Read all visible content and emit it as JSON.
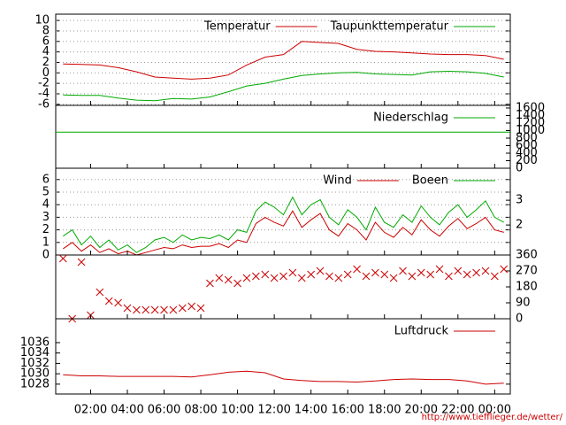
{
  "chart_data": [
    {
      "type": "line",
      "xlim": [
        0.1,
        24.85
      ],
      "ylim": [
        -6.2,
        11.2
      ],
      "yticks": [
        -6,
        -4,
        -2,
        0,
        2,
        4,
        6,
        8,
        10
      ],
      "grid": true,
      "x": [
        0.5,
        1.5,
        2.5,
        3.5,
        4.5,
        5.5,
        6.5,
        7.5,
        8.5,
        9.5,
        10.5,
        11.5,
        12.5,
        13.5,
        14.5,
        15.5,
        16.5,
        17.5,
        18.5,
        19.5,
        20.5,
        21.5,
        22.5,
        23.5,
        24.5
      ],
      "series": [
        {
          "name": "Temperatur",
          "color": "#cc0000",
          "values": [
            1.7,
            1.6,
            1.5,
            1.0,
            0.2,
            -0.8,
            -1.0,
            -1.2,
            -1.0,
            -0.4,
            1.5,
            3.0,
            3.5,
            6.0,
            5.8,
            5.6,
            4.5,
            4.1,
            4.0,
            3.8,
            3.6,
            3.5,
            3.5,
            3.3,
            2.6
          ]
        },
        {
          "name": "Taupunkttemperatur",
          "color": "#00aa00",
          "values": [
            -4.2,
            -4.3,
            -4.3,
            -4.8,
            -5.2,
            -5.3,
            -4.9,
            -5.0,
            -4.6,
            -3.6,
            -2.5,
            -2.0,
            -1.2,
            -0.5,
            -0.2,
            0.0,
            0.1,
            -0.2,
            -0.3,
            -0.4,
            0.2,
            0.3,
            0.2,
            -0.1,
            -0.8
          ]
        }
      ]
    },
    {
      "type": "line",
      "xlim": [
        0.1,
        24.85
      ],
      "y2lim": [
        0,
        1670
      ],
      "y2ticks": [
        0,
        200,
        400,
        600,
        800,
        1000,
        1200,
        1400,
        1600
      ],
      "grid": false,
      "x": [
        0.1,
        24.85
      ],
      "series": [
        {
          "name": "Niederschlag",
          "color": "#00aa00",
          "axis": "y2",
          "values": [
            960,
            960
          ]
        }
      ]
    },
    {
      "type": "line",
      "xlim": [
        0.1,
        24.85
      ],
      "ylim": [
        0,
        6.9
      ],
      "yticks": [
        0,
        1,
        2,
        3,
        4,
        5,
        6
      ],
      "y2lim": [
        0.79,
        4.29
      ],
      "y2ticks": [
        2,
        3
      ],
      "grid": true,
      "x": [
        0.5,
        1,
        1.5,
        2,
        2.5,
        3,
        3.5,
        4,
        4.5,
        5,
        5.5,
        6,
        6.5,
        7,
        7.5,
        8,
        8.5,
        9,
        9.5,
        10,
        10.5,
        11,
        11.5,
        12,
        12.5,
        13,
        13.5,
        14,
        14.5,
        15,
        15.5,
        16,
        16.5,
        17,
        17.5,
        18,
        18.5,
        19,
        19.5,
        20,
        20.5,
        21,
        21.5,
        22,
        22.5,
        23,
        23.5,
        24,
        24.5
      ],
      "series": [
        {
          "name": "Wind",
          "color": "#cc0000",
          "values": [
            0.5,
            1.0,
            0.3,
            0.8,
            0.2,
            0.5,
            0.1,
            0.3,
            0.0,
            0.2,
            0.4,
            0.6,
            0.5,
            0.8,
            0.6,
            0.7,
            0.7,
            0.9,
            0.6,
            1.2,
            1.0,
            2.5,
            3.0,
            2.6,
            2.3,
            3.5,
            2.2,
            2.8,
            3.3,
            2.0,
            1.5,
            2.5,
            2.0,
            1.2,
            2.6,
            1.8,
            1.4,
            2.2,
            1.6,
            2.8,
            2.0,
            1.5,
            2.3,
            2.9,
            2.1,
            2.5,
            3.0,
            2.0,
            1.8
          ]
        },
        {
          "name": "Boeen",
          "color": "#00aa00",
          "values": [
            1.5,
            2.0,
            0.8,
            1.5,
            0.6,
            1.2,
            0.4,
            0.8,
            0.2,
            0.6,
            1.2,
            1.4,
            1.0,
            1.6,
            1.2,
            1.4,
            1.3,
            1.6,
            1.2,
            2.0,
            1.8,
            3.5,
            4.2,
            3.8,
            3.2,
            4.6,
            3.2,
            4.0,
            4.4,
            3.0,
            2.4,
            3.6,
            3.0,
            2.0,
            3.8,
            2.6,
            2.2,
            3.2,
            2.6,
            3.9,
            3.0,
            2.4,
            3.4,
            4.0,
            3.0,
            3.6,
            4.3,
            3.0,
            2.6
          ]
        }
      ]
    },
    {
      "type": "scatter",
      "xlim": [
        0.1,
        24.85
      ],
      "y2lim": [
        0,
        360
      ],
      "y2ticks": [
        0,
        90,
        180,
        270,
        360
      ],
      "grid": false,
      "x": [
        0.5,
        1,
        1.5,
        2,
        2.5,
        3,
        3.5,
        4,
        4.5,
        5,
        5.5,
        6,
        6.5,
        7,
        7.5,
        8,
        8.5,
        9,
        9.5,
        10,
        10.5,
        11,
        11.5,
        12,
        12.5,
        13,
        13.5,
        14,
        14.5,
        15,
        15.5,
        16,
        16.5,
        17,
        17.5,
        18,
        18.5,
        19,
        19.5,
        20,
        20.5,
        21,
        21.5,
        22,
        22.5,
        23,
        23.5,
        24,
        24.5
      ],
      "series": [
        {
          "color": "#cc0000",
          "axis": "y2",
          "values": [
            340,
            0,
            320,
            20,
            150,
            100,
            90,
            60,
            50,
            50,
            50,
            50,
            50,
            60,
            70,
            60,
            200,
            230,
            220,
            200,
            230,
            240,
            250,
            230,
            240,
            260,
            230,
            250,
            270,
            240,
            230,
            250,
            280,
            240,
            260,
            250,
            230,
            270,
            240,
            260,
            250,
            280,
            240,
            270,
            250,
            260,
            270,
            240,
            280
          ]
        }
      ]
    },
    {
      "type": "line",
      "xlim": [
        0.1,
        24.85
      ],
      "ylim": [
        1026.1,
        1040.6
      ],
      "yticks": [
        1028,
        1030,
        1032,
        1034,
        1036
      ],
      "grid": false,
      "xticks": [
        {
          "value": 2,
          "label": "02:00"
        },
        {
          "value": 4,
          "label": "04:00"
        },
        {
          "value": 6,
          "label": "06:00"
        },
        {
          "value": 8,
          "label": "08:00"
        },
        {
          "value": 10,
          "label": "10:00"
        },
        {
          "value": 12,
          "label": "12:00"
        },
        {
          "value": 14,
          "label": "14:00"
        },
        {
          "value": 16,
          "label": "16:00"
        },
        {
          "value": 18,
          "label": "18:00"
        },
        {
          "value": 20,
          "label": "20:00"
        },
        {
          "value": 22,
          "label": "22:00"
        },
        {
          "value": 24,
          "label": "00:00"
        }
      ],
      "x": [
        0.5,
        1.5,
        2.5,
        3.5,
        4.5,
        5.5,
        6.5,
        7.5,
        8.5,
        9.5,
        10.5,
        11.5,
        12.5,
        13.5,
        14.5,
        15.5,
        16.5,
        17.5,
        18.5,
        19.5,
        20.5,
        21.5,
        22.5,
        23.5,
        24.5
      ],
      "series": [
        {
          "name": "Luftdruck",
          "color": "#cc0000",
          "values": [
            1029.8,
            1029.6,
            1029.6,
            1029.5,
            1029.5,
            1029.5,
            1029.5,
            1029.4,
            1029.8,
            1030.3,
            1030.5,
            1030.2,
            1029.0,
            1028.7,
            1028.5,
            1028.5,
            1028.4,
            1028.6,
            1028.9,
            1029.0,
            1028.9,
            1028.9,
            1028.6,
            1028.0,
            1028.2
          ]
        }
      ]
    }
  ],
  "footer": "http://www.tiefflieger.de/wetter/"
}
